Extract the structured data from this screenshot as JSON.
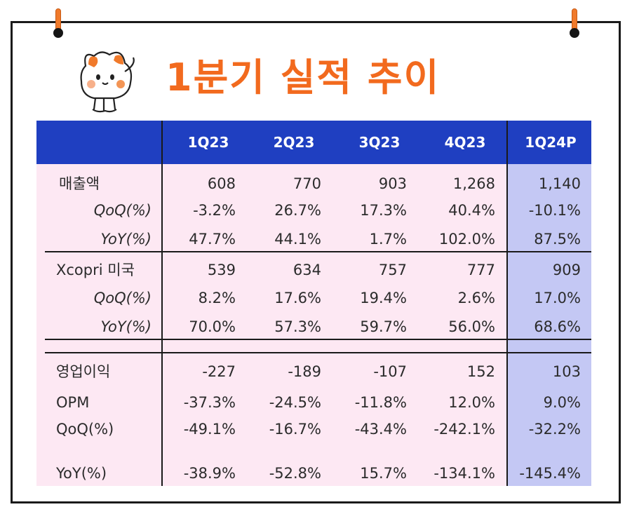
{
  "title": "1분기 실적 추이",
  "colors": {
    "accent_orange": "#f26a1e",
    "header_blue": "#1f3fc1",
    "row_pink": "#fde8f3",
    "highlight_lavender": "#c4c8f4"
  },
  "icons": {
    "mascot": "cat-character-icon",
    "pins": "pushpin-icon"
  },
  "table": {
    "columns": [
      "1Q23",
      "2Q23",
      "3Q23",
      "4Q23",
      "1Q24P"
    ],
    "rows": [
      {
        "label": "매출액",
        "values": [
          "608",
          "770",
          "903",
          "1,268",
          "1,140"
        ]
      },
      {
        "label": "QoQ(%)",
        "values": [
          "-3.2%",
          "26.7%",
          "17.3%",
          "40.4%",
          "-10.1%"
        ]
      },
      {
        "label": "YoY(%)",
        "values": [
          "47.7%",
          "44.1%",
          "1.7%",
          "102.0%",
          "87.5%"
        ]
      },
      {
        "label": "Xcopri 미국",
        "values": [
          "539",
          "634",
          "757",
          "777",
          "909"
        ]
      },
      {
        "label": "QoQ(%)",
        "values": [
          "8.2%",
          "17.6%",
          "19.4%",
          "2.6%",
          "17.0%"
        ]
      },
      {
        "label": "YoY(%)",
        "values": [
          "70.0%",
          "57.3%",
          "59.7%",
          "56.0%",
          "68.6%"
        ]
      },
      {
        "label": "영업이익",
        "values": [
          "-227",
          "-189",
          "-107",
          "152",
          "103"
        ]
      },
      {
        "label": "OPM",
        "values": [
          "-37.3%",
          "-24.5%",
          "-11.8%",
          "12.0%",
          "9.0%"
        ]
      },
      {
        "label": "QoQ(%)",
        "values": [
          "-49.1%",
          "-16.7%",
          "-43.4%",
          "-242.1%",
          "-32.2%"
        ]
      },
      {
        "label": "YoY(%)",
        "values": [
          "-38.9%",
          "-52.8%",
          "15.7%",
          "-134.1%",
          "-145.4%"
        ]
      }
    ]
  }
}
